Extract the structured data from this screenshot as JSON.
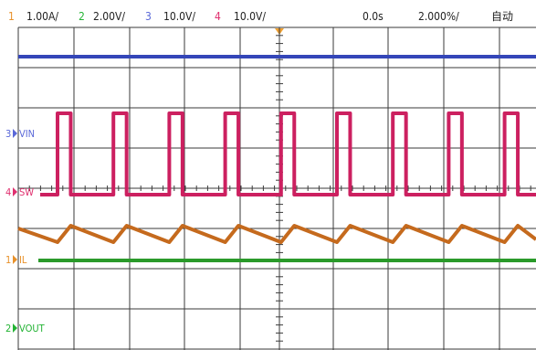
{
  "colors": {
    "ch1": "#e8912a",
    "ch2": "#22b333",
    "ch3": "#5a68d8",
    "ch4": "#e0306f",
    "ch1_trace": "#c56a1d",
    "ch2_trace": "#2a9a2a",
    "ch3_trace": "#3446b8",
    "ch4_trace": "#cc2060",
    "grid": "#3a3a3a",
    "trigger_marker": "#f0a030"
  },
  "header": {
    "ch1_num": "1",
    "ch1_scale": "1.00A/",
    "ch2_num": "2",
    "ch2_scale": "2.00V/",
    "ch3_num": "3",
    "ch3_scale": "10.0V/",
    "ch4_num": "4",
    "ch4_scale": "10.0V/",
    "time_offset": "0.0s",
    "timebase": "2.000%/",
    "mode": "自动"
  },
  "channels": {
    "vin": {
      "num": "3",
      "label": "VIN"
    },
    "sw": {
      "num": "4",
      "label": "SW"
    },
    "il": {
      "num": "1",
      "label": "IL"
    },
    "vout": {
      "num": "2",
      "label": "VOUT"
    }
  },
  "waveforms": {
    "switching_pulse_count": 9,
    "duty_cycle": 0.22,
    "il_ramp": "sawtooth"
  }
}
